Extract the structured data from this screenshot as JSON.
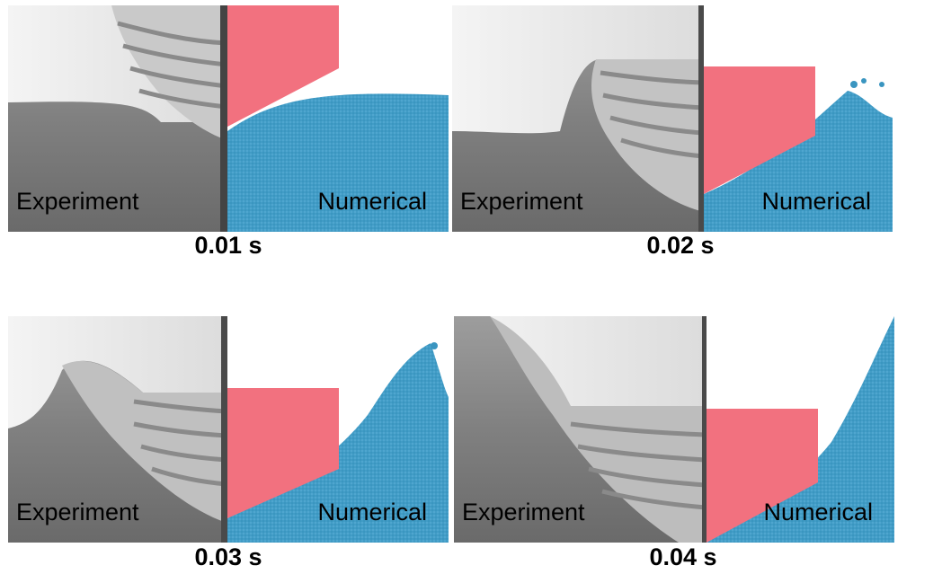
{
  "labels": {
    "experiment": "Experiment",
    "numerical": "Numerical"
  },
  "panels": [
    {
      "time": "0.01 s"
    },
    {
      "time": "0.02 s"
    },
    {
      "time": "0.03 s"
    },
    {
      "time": "0.04 s"
    }
  ],
  "colors": {
    "body": "#f2717f",
    "fluid": "#3a95c0",
    "photo_dark": "#6e6e6e",
    "photo_light": "#ececec"
  }
}
